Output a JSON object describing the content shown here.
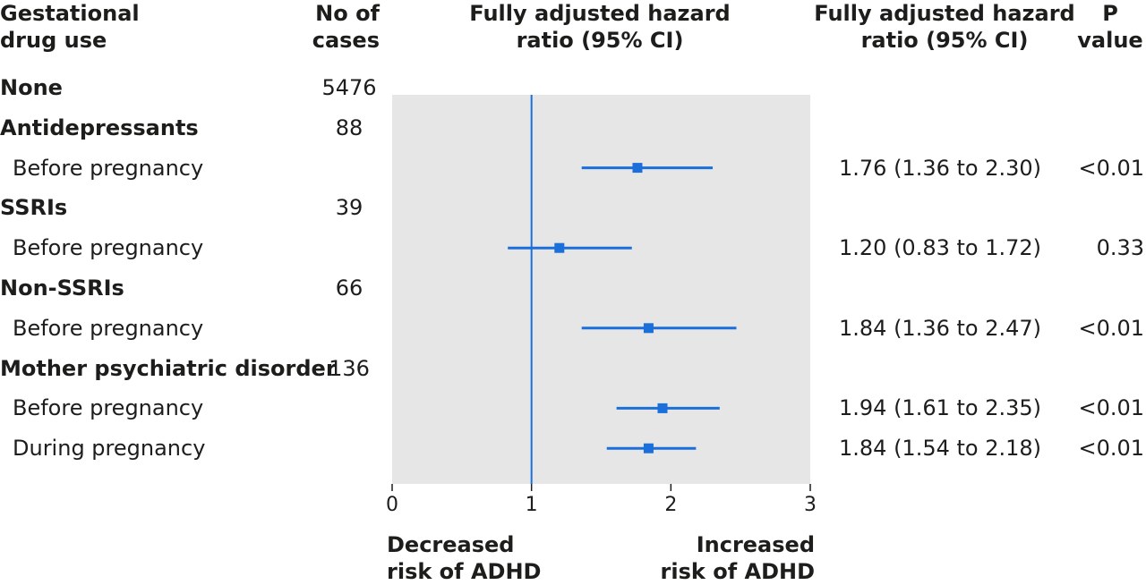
{
  "headers": {
    "group": [
      "Gestational",
      "drug use"
    ],
    "cases": [
      "No of",
      "cases"
    ],
    "plot": [
      "Fully adjusted hazard",
      "ratio (95% CI)"
    ],
    "hr": [
      "Fully adjusted hazard",
      "ratio (95% CI)"
    ],
    "p": [
      "P",
      "value"
    ]
  },
  "bottom_labels": {
    "left": [
      "Decreased",
      "risk of ADHD"
    ],
    "right": [
      "Increased",
      "risk of ADHD"
    ]
  },
  "colors": {
    "marker": "#1a6fdb",
    "panel": "#e6e6e6",
    "text": "#1d1d1b"
  },
  "chart_data": {
    "type": "forest",
    "xlim": [
      0,
      3
    ],
    "xticks": [
      0,
      1,
      2,
      3
    ],
    "reference_line": 1,
    "rows": [
      {
        "label": "None",
        "bold": true,
        "cases": "5476"
      },
      {
        "label": "Antidepressants",
        "bold": true,
        "cases": "88"
      },
      {
        "label": "Before pregnancy",
        "bold": false,
        "hr": 1.76,
        "lo": 1.36,
        "hi": 2.3,
        "hr_text": "1.76 (1.36 to 2.30)",
        "p": "<0.01"
      },
      {
        "label": "SSRIs",
        "bold": true,
        "cases": "39"
      },
      {
        "label": "Before pregnancy",
        "bold": false,
        "hr": 1.2,
        "lo": 0.83,
        "hi": 1.72,
        "hr_text": "1.20 (0.83 to 1.72)",
        "p": "0.33"
      },
      {
        "label": "Non-SSRIs",
        "bold": true,
        "cases": "66"
      },
      {
        "label": "Before pregnancy",
        "bold": false,
        "hr": 1.84,
        "lo": 1.36,
        "hi": 2.47,
        "hr_text": "1.84 (1.36 to 2.47)",
        "p": "<0.01"
      },
      {
        "label": "Mother psychiatric disorder",
        "bold": true,
        "cases": "136"
      },
      {
        "label": "Before pregnancy",
        "bold": false,
        "hr": 1.94,
        "lo": 1.61,
        "hi": 2.35,
        "hr_text": "1.94 (1.61 to 2.35)",
        "p": "<0.01"
      },
      {
        "label": "During pregnancy",
        "bold": false,
        "hr": 1.84,
        "lo": 1.54,
        "hi": 2.18,
        "hr_text": "1.84 (1.54 to 2.18)",
        "p": "<0.01"
      }
    ]
  }
}
